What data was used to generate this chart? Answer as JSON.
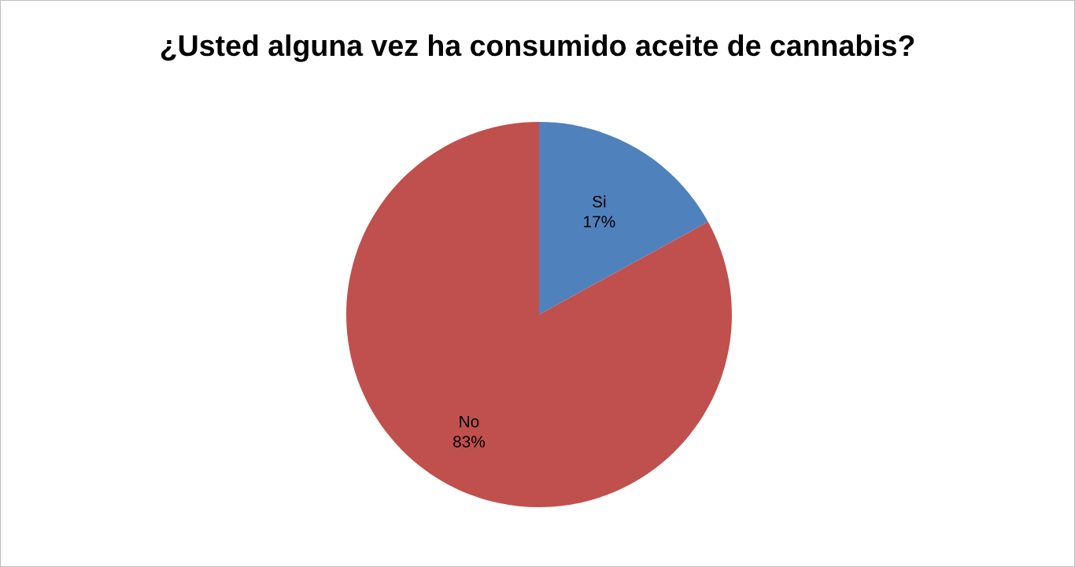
{
  "chart_data": {
    "type": "pie",
    "title": "¿Usted alguna vez ha consumido aceite de cannabis?",
    "categories": [
      "Si",
      "No"
    ],
    "values": [
      17,
      83
    ],
    "colors": [
      "#4f81bd",
      "#c0504d"
    ],
    "value_labels": [
      "17%",
      "83%"
    ],
    "legend": false
  }
}
